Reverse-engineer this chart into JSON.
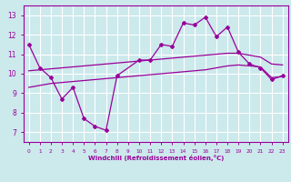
{
  "background_color": "#cce9ec",
  "grid_color": "#ffffff",
  "line_color": "#990099",
  "xlabel": "Windchill (Refroidissement éolien,°C)",
  "ylabel_ticks": [
    7,
    8,
    9,
    10,
    11,
    12,
    13
  ],
  "xticks": [
    0,
    1,
    2,
    3,
    4,
    5,
    6,
    7,
    8,
    9,
    10,
    11,
    12,
    13,
    14,
    15,
    16,
    17,
    18,
    19,
    20,
    21,
    22,
    23
  ],
  "xlim": [
    -0.5,
    23.5
  ],
  "ylim": [
    6.5,
    13.5
  ],
  "line1_x": [
    0,
    1,
    2,
    3,
    4,
    5,
    6,
    7,
    8,
    10,
    11,
    12,
    13,
    14,
    15,
    16,
    17,
    18,
    19,
    20,
    21,
    22,
    23
  ],
  "line1_y": [
    11.5,
    10.3,
    9.8,
    8.7,
    9.3,
    7.7,
    7.3,
    7.1,
    9.9,
    10.7,
    10.7,
    11.5,
    11.4,
    12.6,
    12.5,
    12.9,
    11.9,
    12.4,
    11.1,
    10.5,
    10.3,
    9.7,
    9.9
  ],
  "line2_x": [
    0,
    1,
    2,
    3,
    4,
    5,
    6,
    7,
    8,
    9,
    10,
    11,
    12,
    13,
    14,
    15,
    16,
    17,
    18,
    19,
    20,
    21,
    22,
    23
  ],
  "line2_y": [
    10.15,
    10.2,
    10.25,
    10.3,
    10.35,
    10.4,
    10.45,
    10.5,
    10.55,
    10.6,
    10.65,
    10.7,
    10.75,
    10.8,
    10.85,
    10.9,
    10.95,
    11.0,
    11.05,
    11.05,
    10.95,
    10.85,
    10.5,
    10.45
  ],
  "line3_x": [
    0,
    1,
    2,
    3,
    4,
    5,
    6,
    7,
    8,
    9,
    10,
    11,
    12,
    13,
    14,
    15,
    16,
    17,
    18,
    19,
    20,
    21,
    22,
    23
  ],
  "line3_y": [
    9.3,
    9.4,
    9.5,
    9.55,
    9.6,
    9.65,
    9.7,
    9.75,
    9.8,
    9.85,
    9.9,
    9.95,
    10.0,
    10.05,
    10.1,
    10.15,
    10.2,
    10.3,
    10.4,
    10.45,
    10.4,
    10.35,
    9.8,
    9.85
  ]
}
